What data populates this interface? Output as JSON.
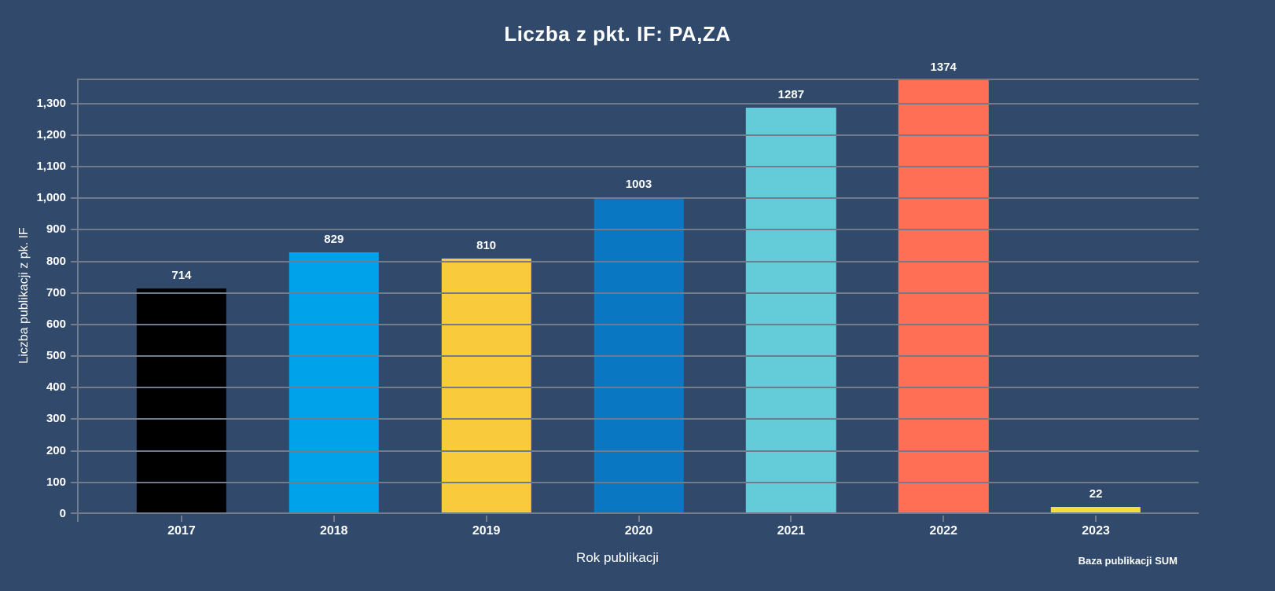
{
  "header": {
    "title": "Liczba z pkt. IF: PA,ZA"
  },
  "axes": {
    "x_title": "Rok publikacji",
    "y_title": "Liczba publikacji z pk. IF"
  },
  "footer": {
    "source_label": "Baza publikacji SUM"
  },
  "colors": {
    "background": "#314A6C",
    "grid": "#717B8B",
    "text": "#FFFFFF"
  },
  "chart_data": {
    "type": "bar",
    "title": "Liczba z pkt. IF: PA,ZA",
    "xlabel": "Rok publikacji",
    "ylabel": "Liczba publikacji z pk. IF",
    "categories": [
      "2017",
      "2018",
      "2019",
      "2020",
      "2021",
      "2022",
      "2023"
    ],
    "values": [
      714,
      829,
      810,
      1003,
      1287,
      1374,
      22
    ],
    "bar_colors": [
      "#000000",
      "#00A2E9",
      "#F9CA3B",
      "#0A77C2",
      "#64CBD9",
      "#FF6F55",
      "#F6DC3F"
    ],
    "ylim": [
      0,
      1374
    ],
    "y_ticks": [
      0,
      100,
      200,
      300,
      400,
      500,
      600,
      700,
      800,
      900,
      1000,
      1100,
      1200,
      1300
    ],
    "y_tick_format": "thousands-comma",
    "grid": true,
    "legend": false,
    "annotation": "Baza publikacji SUM"
  }
}
